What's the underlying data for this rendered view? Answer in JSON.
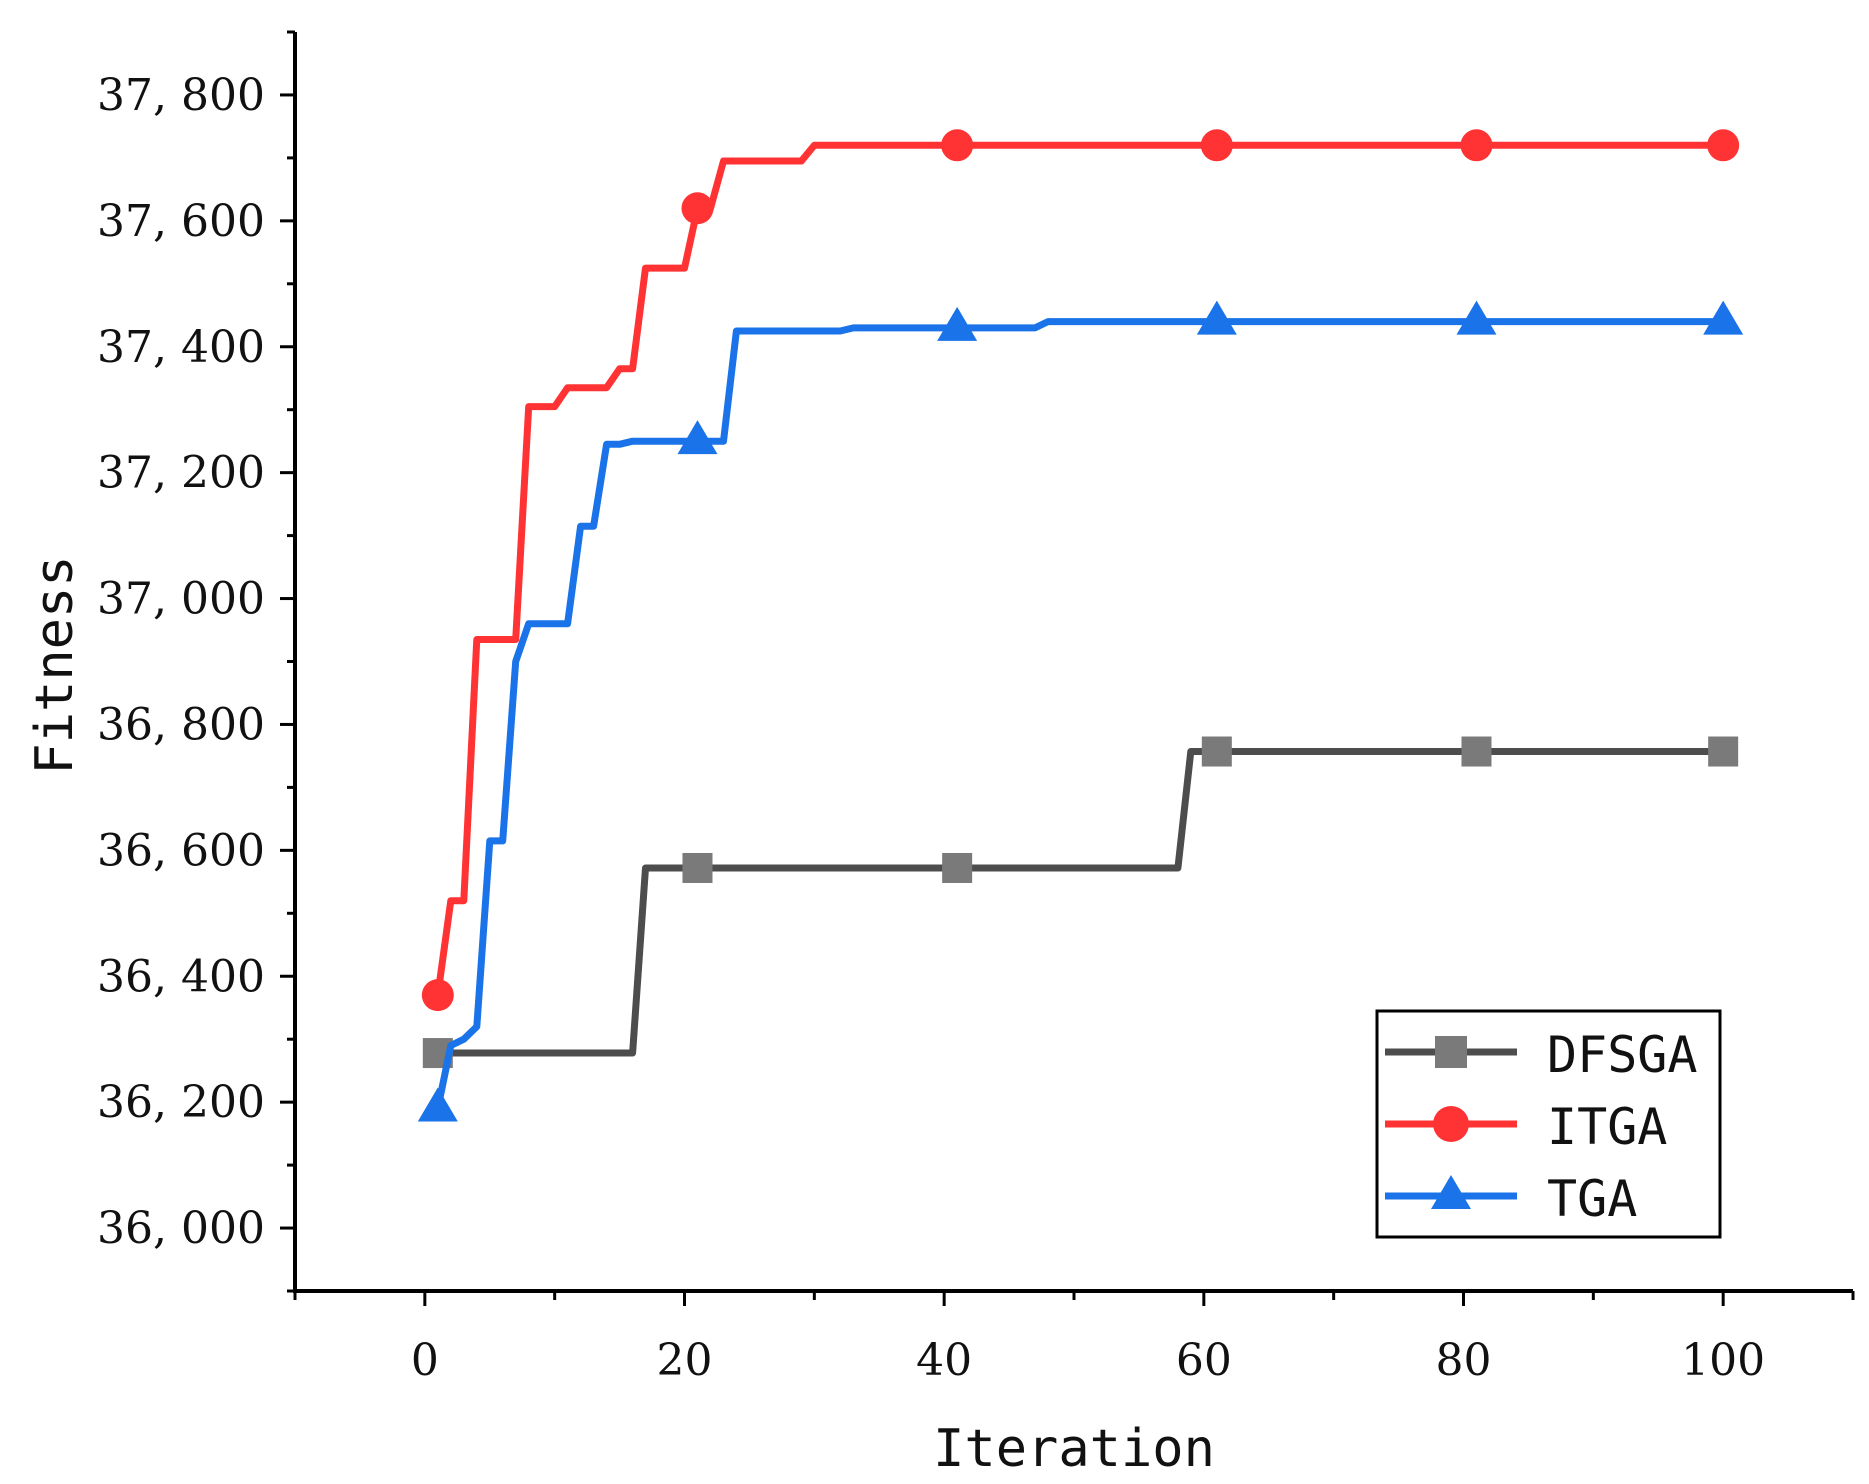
{
  "chart_data": {
    "type": "line",
    "title": "",
    "xlabel": "Iteration",
    "ylabel": "Fitness",
    "xlim": [
      -10,
      110
    ],
    "ylim": [
      35900,
      37900
    ],
    "x_ticks": [
      0,
      20,
      40,
      60,
      80,
      100
    ],
    "y_ticks": [
      36000,
      36200,
      36400,
      36600,
      36800,
      37000,
      37200,
      37400,
      37600,
      37800
    ],
    "x_tick_labels": [
      "0",
      "20",
      "40",
      "60",
      "80",
      "100"
    ],
    "y_tick_labels": [
      "36, 000",
      "36, 200",
      "36, 400",
      "36, 600",
      "36, 800",
      "37, 000",
      "37, 200",
      "37, 400",
      "37, 600",
      "37, 800"
    ],
    "grid": false,
    "legend_position": "bottom-right",
    "series": [
      {
        "name": "DFSGA",
        "color": "#4d4d4d",
        "marker_color": "#7a7a7a",
        "marker": "square",
        "x": [
          1,
          2,
          16,
          17,
          58,
          59,
          100
        ],
        "y": [
          36278,
          36278,
          36278,
          36572,
          36572,
          36757,
          36757
        ],
        "markers": [
          [
            1,
            36278
          ],
          [
            21,
            36572
          ],
          [
            41,
            36572
          ],
          [
            61,
            36757
          ],
          [
            81,
            36757
          ],
          [
            100,
            36757
          ]
        ]
      },
      {
        "name": "ITGA",
        "color": "#ff3333",
        "marker_color": "#ff3333",
        "marker": "circle",
        "x": [
          1,
          2,
          3,
          4,
          7,
          8,
          10,
          11,
          14,
          15,
          16,
          17,
          20,
          21,
          22,
          23,
          29,
          30,
          100
        ],
        "y": [
          36370,
          36520,
          36520,
          36935,
          36935,
          37305,
          37305,
          37335,
          37335,
          37365,
          37365,
          37525,
          37525,
          37620,
          37620,
          37695,
          37695,
          37720,
          37720
        ],
        "markers": [
          [
            1,
            36370
          ],
          [
            21,
            37620
          ],
          [
            41,
            37720
          ],
          [
            61,
            37720
          ],
          [
            81,
            37720
          ],
          [
            100,
            37720
          ]
        ]
      },
      {
        "name": "TGA",
        "color": "#1a73e8",
        "marker_color": "#1a73e8",
        "marker": "triangle",
        "x": [
          1,
          2,
          3,
          4,
          5,
          6,
          7,
          8,
          11,
          12,
          13,
          14,
          15,
          16,
          17,
          20,
          21,
          23,
          24,
          32,
          33,
          47,
          48,
          100
        ],
        "y": [
          36190,
          36290,
          36300,
          36320,
          36615,
          36615,
          36900,
          36960,
          36960,
          37115,
          37115,
          37245,
          37245,
          37250,
          37250,
          37250,
          37250,
          37250,
          37425,
          37425,
          37430,
          37430,
          37440,
          37440
        ],
        "markers": [
          [
            1,
            36190
          ],
          [
            21,
            37250
          ],
          [
            41,
            37430
          ],
          [
            61,
            37440
          ],
          [
            81,
            37440
          ],
          [
            100,
            37440
          ]
        ]
      }
    ]
  }
}
